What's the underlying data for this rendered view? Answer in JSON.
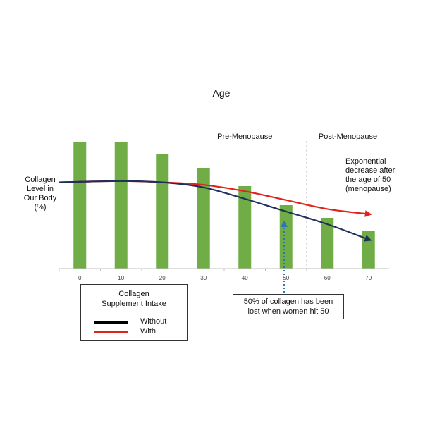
{
  "chart_data": {
    "type": "bar",
    "title": "Age",
    "ylabel": "Collagen Level in Our Body (%)",
    "ylabel_lines": [
      "Collagen",
      "Level in",
      "Our Body",
      "(%)"
    ],
    "categories": [
      "0",
      "10",
      "20",
      "30",
      "40",
      "50",
      "60",
      "70"
    ],
    "values": [
      100,
      100,
      90,
      79,
      65,
      50,
      40,
      30
    ],
    "ylim": [
      0,
      100
    ],
    "bar_color": "#70AD47",
    "regions": [
      {
        "label": "Pre-Menopause",
        "from": "30",
        "to": "50"
      },
      {
        "label": "Post-Menopause",
        "from": "60",
        "to": "70"
      }
    ],
    "lines": [
      {
        "name": "Without",
        "color": "#1F2F5A",
        "x": [
          0,
          10,
          20,
          30,
          40,
          50,
          60,
          70
        ],
        "y": [
          68,
          69,
          68,
          64,
          55,
          45,
          35,
          23
        ]
      },
      {
        "name": "With",
        "color": "#E0231C",
        "x": [
          0,
          10,
          20,
          30,
          40,
          50,
          60,
          70
        ],
        "y": [
          68,
          69,
          68,
          66,
          61,
          54,
          47,
          43
        ]
      }
    ],
    "annotations": {
      "exponential": [
        "Exponential",
        "decrease after",
        "the age of 50",
        "(menopause)"
      ],
      "note": [
        "50% of collagen has been",
        "lost when women hit 50"
      ]
    },
    "legend": {
      "title_lines": [
        "Collagen",
        "Supplement Intake"
      ],
      "items": [
        {
          "label": "Without",
          "color": "#000000"
        },
        {
          "label": "With",
          "color": "#E0231C"
        }
      ]
    },
    "grid": false
  }
}
